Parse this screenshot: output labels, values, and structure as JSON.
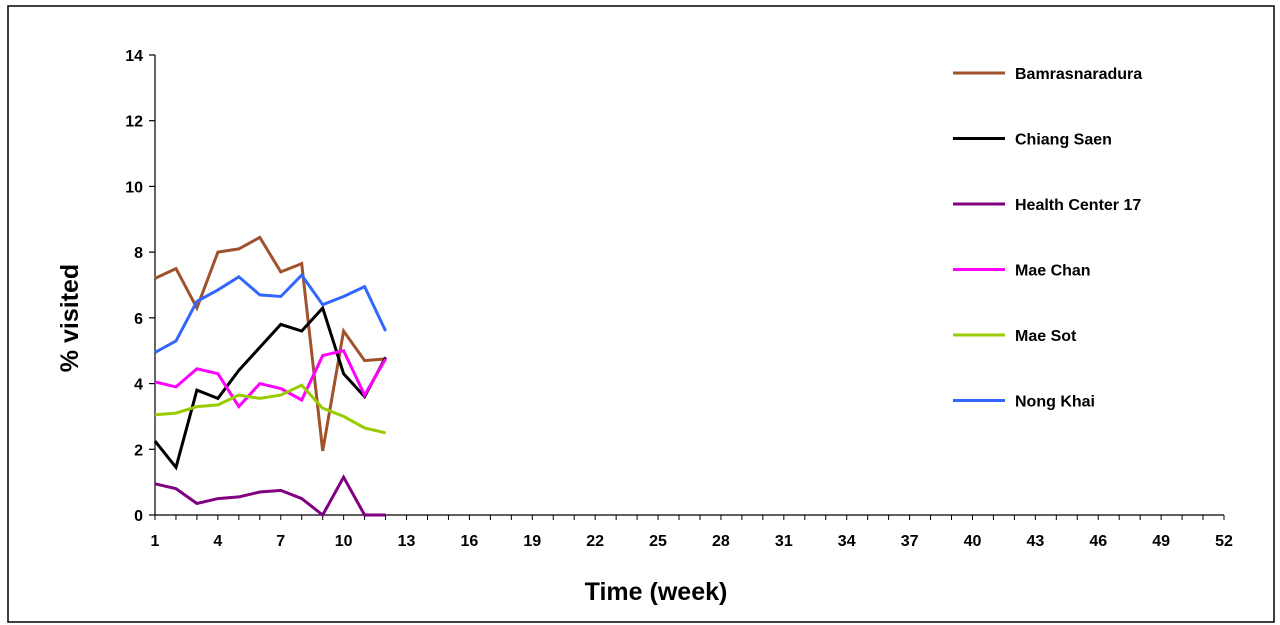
{
  "chart_data": {
    "type": "line",
    "xlabel": "Time (week)",
    "ylabel": "% visited",
    "xlim": [
      1,
      52
    ],
    "ylim": [
      0,
      14
    ],
    "x_ticks": [
      1,
      4,
      7,
      10,
      13,
      16,
      19,
      22,
      25,
      28,
      31,
      34,
      37,
      40,
      43,
      46,
      49,
      52
    ],
    "y_ticks": [
      0,
      2,
      4,
      6,
      8,
      10,
      12,
      14
    ],
    "grid": false,
    "legend_position": "right",
    "series": [
      {
        "name": "Bamrasnaradura",
        "color": "#A0522D",
        "x": [
          1,
          2,
          3,
          4,
          5,
          6,
          7,
          8,
          9,
          10,
          11,
          12
        ],
        "y": [
          7.2,
          7.5,
          6.3,
          8.0,
          8.1,
          8.45,
          7.4,
          7.65,
          1.95,
          5.6,
          4.7,
          4.75
        ]
      },
      {
        "name": "Chiang Saen",
        "color": "#000000",
        "x": [
          1,
          2,
          3,
          4,
          5,
          6,
          7,
          8,
          9,
          10,
          11,
          12
        ],
        "y": [
          2.25,
          1.45,
          3.8,
          3.55,
          4.4,
          5.1,
          5.8,
          5.6,
          6.3,
          4.3,
          3.6,
          4.8
        ]
      },
      {
        "name": "Health Center 17",
        "color": "#800080",
        "x": [
          1,
          2,
          3,
          4,
          5,
          6,
          7,
          8,
          9,
          10,
          11,
          12
        ],
        "y": [
          0.95,
          0.8,
          0.35,
          0.5,
          0.55,
          0.7,
          0.75,
          0.5,
          0.0,
          1.15,
          0.0,
          0.0
        ]
      },
      {
        "name": "Mae Chan",
        "color": "#FF00FF",
        "x": [
          1,
          2,
          3,
          4,
          5,
          6,
          7,
          8,
          9,
          10,
          11,
          12
        ],
        "y": [
          4.05,
          3.9,
          4.45,
          4.3,
          3.3,
          4.0,
          3.85,
          3.5,
          4.85,
          5.0,
          3.65,
          4.75
        ]
      },
      {
        "name": "Mae Sot",
        "color": "#99CC00",
        "x": [
          1,
          2,
          3,
          4,
          5,
          6,
          7,
          8,
          9,
          10,
          11,
          12
        ],
        "y": [
          3.05,
          3.1,
          3.3,
          3.35,
          3.65,
          3.55,
          3.65,
          3.95,
          3.25,
          3.0,
          2.65,
          2.5
        ]
      },
      {
        "name": "Nong Khai",
        "color": "#3366FF",
        "x": [
          1,
          2,
          3,
          4,
          5,
          6,
          7,
          8,
          9,
          10,
          11,
          12
        ],
        "y": [
          4.95,
          5.3,
          6.5,
          6.85,
          7.25,
          6.7,
          6.65,
          7.3,
          6.4,
          6.65,
          6.95,
          5.6
        ]
      }
    ]
  }
}
